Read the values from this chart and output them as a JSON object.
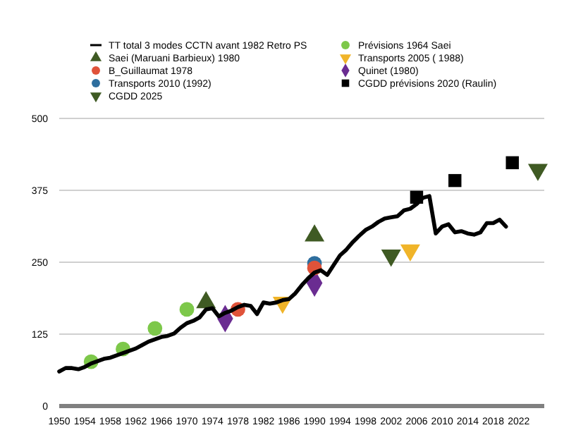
{
  "chart_data": {
    "type": "line",
    "xlim": [
      1950,
      2026
    ],
    "xticks": [
      1950,
      1954,
      1958,
      1962,
      1966,
      1970,
      1974,
      1978,
      1982,
      1986,
      1990,
      1994,
      1998,
      2002,
      2006,
      2010,
      2014,
      2018,
      2022
    ],
    "ylim": [
      0,
      500
    ],
    "yticks": [
      0,
      125,
      250,
      375,
      500
    ],
    "grid": "y",
    "legend": "top",
    "series": [
      {
        "name": "TT total 3 modes CCTN avant 1982 Retro PS",
        "color": "#000000",
        "marker": "none",
        "x": [
          1950,
          1951,
          1952,
          1953,
          1954,
          1955,
          1956,
          1957,
          1958,
          1959,
          1960,
          1961,
          1962,
          1963,
          1964,
          1965,
          1966,
          1967,
          1968,
          1969,
          1970,
          1971,
          1972,
          1973,
          1974,
          1975,
          1976,
          1977,
          1978,
          1979,
          1980,
          1981,
          1982,
          1983,
          1984,
          1985,
          1986,
          1987,
          1988,
          1989,
          1990,
          1991,
          1992,
          1993,
          1994,
          1995,
          1996,
          1997,
          1998,
          1999,
          2000,
          2001,
          2002,
          2003,
          2004,
          2005,
          2006,
          2007,
          2008,
          2009,
          2010,
          2011,
          2012,
          2013,
          2014,
          2015,
          2016,
          2017,
          2018,
          2019,
          2020
        ],
        "values": [
          60,
          66,
          66,
          64,
          68,
          74,
          78,
          82,
          84,
          88,
          92,
          96,
          100,
          106,
          112,
          116,
          120,
          122,
          126,
          136,
          144,
          148,
          154,
          168,
          170,
          156,
          162,
          166,
          172,
          176,
          174,
          160,
          180,
          178,
          180,
          184,
          186,
          196,
          210,
          222,
          232,
          236,
          228,
          245,
          262,
          272,
          285,
          296,
          306,
          312,
          320,
          326,
          328,
          330,
          340,
          343,
          351,
          362,
          365,
          300,
          312,
          316,
          302,
          304,
          300,
          298,
          302,
          318,
          318,
          324,
          312
        ]
      },
      {
        "name": "Saei (Maruani Barbieux)  1980",
        "type": "scatter",
        "color": "#3f5a23",
        "marker": "triangle",
        "x": [
          1973,
          1990
        ],
        "values": [
          180,
          296
        ]
      },
      {
        "name": "B_Guillaumat 1978",
        "type": "scatter",
        "color": "#e0533a",
        "marker": "circle",
        "x": [
          1978,
          1990
        ],
        "values": [
          168,
          240
        ]
      },
      {
        "name": "Transports 2010 (1992)",
        "type": "scatter",
        "color": "#2e6e9e",
        "marker": "circle",
        "x": [
          1990
        ],
        "values": [
          248
        ]
      },
      {
        "name": "CGDD 2025",
        "type": "scatter",
        "color": "#3f5a23",
        "marker": "triangle-down",
        "x": [
          2002,
          2025
        ],
        "values": [
          262,
          411
        ]
      },
      {
        "name": "Prévisions 1964 Saei",
        "type": "scatter",
        "color": "#7dc84a",
        "marker": "circle",
        "x": [
          1955,
          1960,
          1965,
          1970
        ],
        "values": [
          77,
          99,
          135,
          168
        ]
      },
      {
        "name": "Transports 2005 ( 1988)",
        "type": "scatter",
        "color": "#f0b429",
        "marker": "triangle-down",
        "x": [
          1985,
          2005
        ],
        "values": [
          180,
          271
        ]
      },
      {
        "name": "Quinet (1980)",
        "type": "scatter",
        "color": "#6a2c91",
        "marker": "diamond",
        "x": [
          1976,
          1990
        ],
        "values": [
          152,
          214
        ]
      },
      {
        "name": "CGDD prévisions 2020 (Raulin)",
        "type": "scatter",
        "color": "#000000",
        "marker": "square",
        "x": [
          2006,
          2012,
          2021
        ],
        "values": [
          363,
          392,
          423
        ]
      }
    ]
  }
}
